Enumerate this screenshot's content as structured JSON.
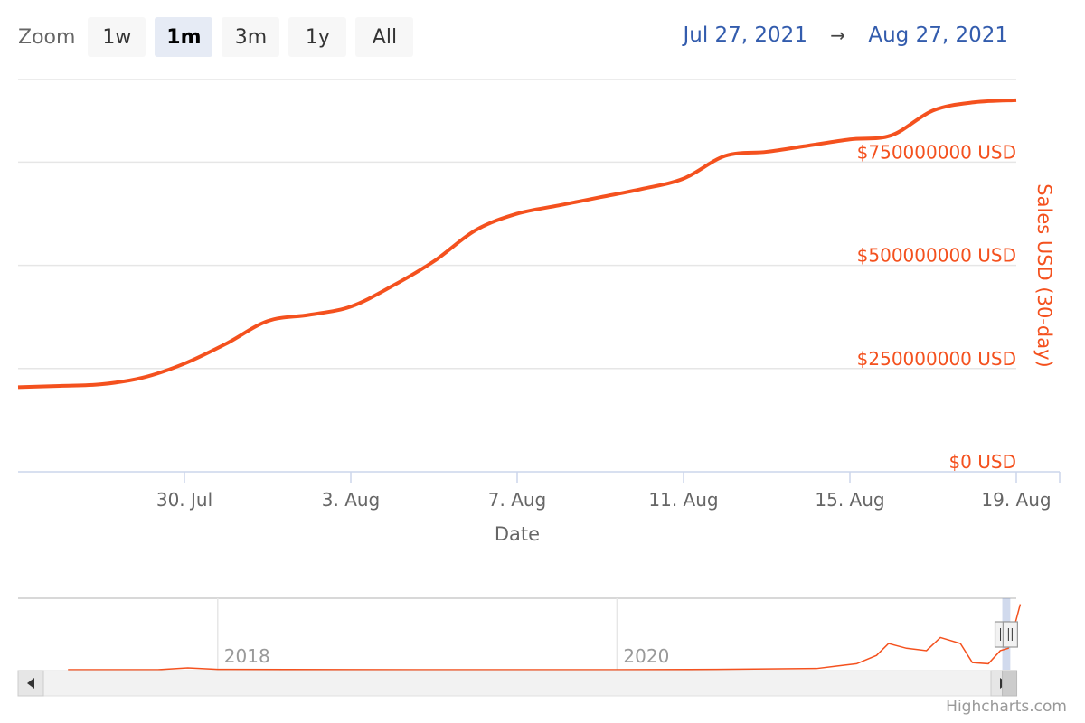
{
  "toolbar": {
    "zoom_label": "Zoom",
    "buttons": [
      "1w",
      "1m",
      "3m",
      "1y",
      "All"
    ],
    "selected": "1m"
  },
  "range": {
    "from": "Jul 27, 2021",
    "arrow": "→",
    "to": "Aug 27, 2021"
  },
  "colors": {
    "series": "#f4511e",
    "axis_text": "#666666",
    "grid": "#e6e6e6",
    "range_text": "#335cad"
  },
  "chart_data": {
    "type": "line",
    "title": "",
    "xlabel": "Date",
    "ylabel": "Sales USD (30-day)",
    "x_range": [
      "2021-07-26",
      "2021-08-19"
    ],
    "ylim": [
      0,
      950000000
    ],
    "y_ticks": [
      0,
      250000000,
      500000000,
      750000000
    ],
    "y_tick_labels": [
      "$0 USD",
      "$250000000 USD",
      "$500000000 USD",
      "$750000000 USD"
    ],
    "x_ticks": [
      "2021-07-30",
      "2021-08-03",
      "2021-08-07",
      "2021-08-11",
      "2021-08-15",
      "2021-08-19"
    ],
    "x_tick_labels": [
      "30. Jul",
      "3. Aug",
      "7. Aug",
      "11. Aug",
      "15. Aug",
      "19. Aug"
    ],
    "grid": true,
    "series": [
      {
        "name": "",
        "points": [
          [
            "2021-07-26",
            205000000
          ],
          [
            "2021-07-27",
            208000000
          ],
          [
            "2021-07-28",
            212000000
          ],
          [
            "2021-07-29",
            228000000
          ],
          [
            "2021-07-30",
            262000000
          ],
          [
            "2021-07-31",
            310000000
          ],
          [
            "2021-08-01",
            365000000
          ],
          [
            "2021-08-02",
            380000000
          ],
          [
            "2021-08-03",
            400000000
          ],
          [
            "2021-08-04",
            450000000
          ],
          [
            "2021-08-05",
            510000000
          ],
          [
            "2021-08-06",
            585000000
          ],
          [
            "2021-08-07",
            625000000
          ],
          [
            "2021-08-08",
            645000000
          ],
          [
            "2021-08-09",
            665000000
          ],
          [
            "2021-08-10",
            685000000
          ],
          [
            "2021-08-11",
            710000000
          ],
          [
            "2021-08-12",
            765000000
          ],
          [
            "2021-08-13",
            775000000
          ],
          [
            "2021-08-14",
            790000000
          ],
          [
            "2021-08-15",
            805000000
          ],
          [
            "2021-08-16",
            815000000
          ],
          [
            "2021-08-17",
            875000000
          ],
          [
            "2021-08-18",
            895000000
          ],
          [
            "2021-08-19",
            900000000
          ]
        ]
      }
    ]
  },
  "navigator": {
    "labels": [
      "2018",
      "2020"
    ],
    "series": [
      [
        2017.25,
        0
      ],
      [
        2017.7,
        0
      ],
      [
        2017.85,
        1.5
      ],
      [
        2018.0,
        0.3
      ],
      [
        2019.0,
        0
      ],
      [
        2020.0,
        0
      ],
      [
        2020.5,
        0.3
      ],
      [
        2021.0,
        1
      ],
      [
        2021.1,
        3
      ],
      [
        2021.2,
        5
      ],
      [
        2021.3,
        12
      ],
      [
        2021.36,
        22
      ],
      [
        2021.45,
        18
      ],
      [
        2021.55,
        16
      ],
      [
        2021.62,
        27
      ],
      [
        2021.72,
        22
      ],
      [
        2021.78,
        6
      ],
      [
        2021.86,
        5
      ],
      [
        2021.92,
        16
      ],
      [
        2021.96,
        18
      ],
      [
        2021.99,
        36
      ],
      [
        2022.02,
        55
      ]
    ],
    "selected_range": [
      2021.93,
      2021.97
    ]
  },
  "credit": "Highcharts.com"
}
